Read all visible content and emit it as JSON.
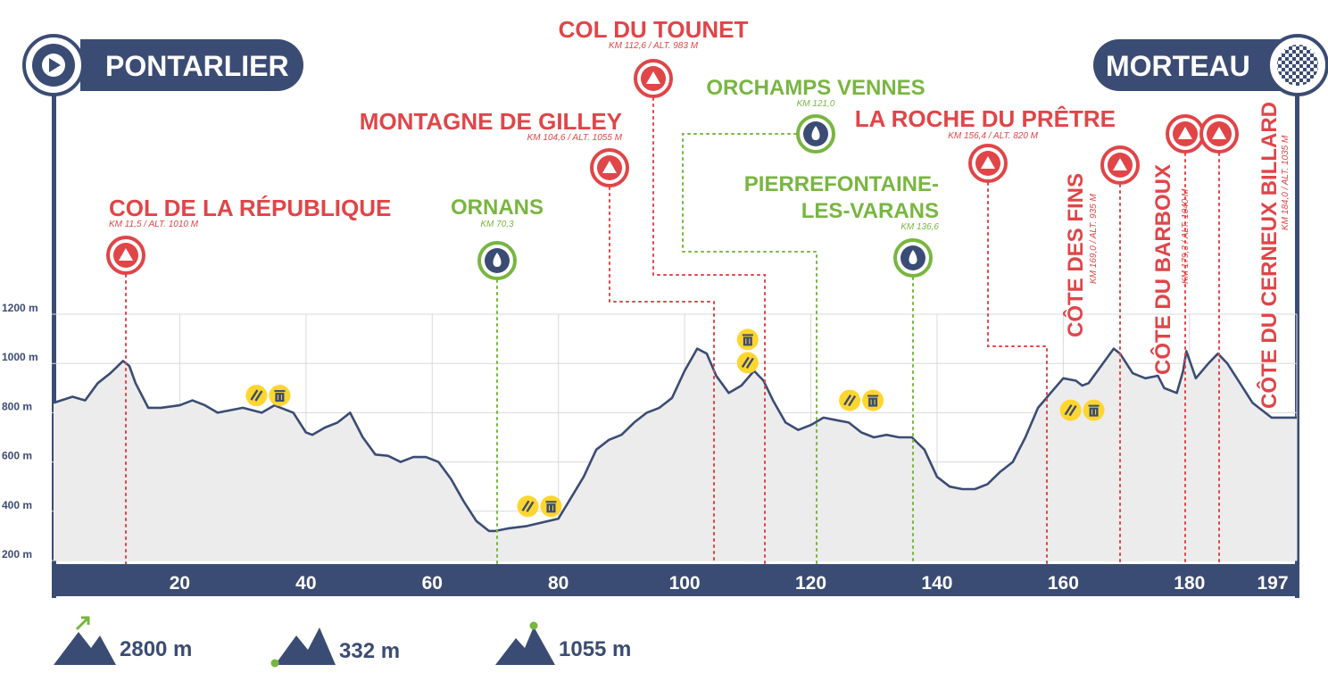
{
  "start": {
    "name": "PONTARLIER",
    "icon": "play-icon"
  },
  "finish": {
    "name": "MORTEAU",
    "icon": "checkered-flag-icon"
  },
  "colors": {
    "navy": "#3b4c74",
    "climb_red": "#e04548",
    "sprint_green": "#78b640",
    "feed_yellow": "#ffd62e",
    "profile_fill": "#ececec",
    "grid": "#d9d9d9"
  },
  "chart_data": {
    "type": "area",
    "xlabel": "",
    "ylabel": "",
    "x_unit": "km",
    "y_unit": "m",
    "xlim": [
      0,
      197
    ],
    "ylim": [
      200,
      1200
    ],
    "x_ticks": [
      "20",
      "40",
      "60",
      "80",
      "100",
      "120",
      "140",
      "160",
      "180",
      "197"
    ],
    "x_tick_values": [
      20,
      40,
      60,
      80,
      100,
      120,
      140,
      160,
      180,
      197
    ],
    "y_ticks": [
      "1200 m",
      "1000 m",
      "800 m",
      "600 m",
      "400 m",
      "200 m"
    ],
    "y_tick_values": [
      1200,
      1000,
      800,
      600,
      400,
      200
    ],
    "profile": {
      "x": [
        0,
        3,
        5,
        7,
        9,
        11,
        12,
        13,
        15,
        17,
        20,
        22,
        24,
        26,
        28,
        30,
        33,
        35,
        36,
        38,
        40,
        41,
        43,
        45,
        47,
        49,
        51,
        53,
        55,
        57,
        59,
        61,
        63,
        65,
        67,
        69,
        70,
        72,
        75,
        80,
        84,
        86,
        88,
        90,
        92,
        94,
        96,
        98,
        100,
        102,
        103.5,
        105,
        107,
        109,
        111,
        112.5,
        114,
        116,
        118,
        120,
        122,
        124,
        126,
        128,
        130,
        132,
        134,
        136,
        138,
        140,
        142,
        144,
        146,
        148,
        150,
        152,
        154,
        156,
        157,
        158,
        160,
        162,
        163,
        164,
        166,
        168,
        169,
        171,
        173,
        175,
        176,
        178,
        179,
        179.5,
        181,
        183,
        184.5,
        186,
        188,
        190,
        193,
        197
      ],
      "y": [
        840,
        865,
        850,
        920,
        960,
        1010,
        990,
        920,
        820,
        820,
        830,
        850,
        830,
        800,
        810,
        820,
        800,
        830,
        820,
        800,
        720,
        710,
        740,
        760,
        800,
        700,
        630,
        625,
        600,
        620,
        620,
        600,
        530,
        440,
        360,
        320,
        320,
        330,
        340,
        370,
        540,
        650,
        690,
        710,
        760,
        800,
        820,
        860,
        970,
        1060,
        1040,
        950,
        880,
        910,
        970,
        930,
        850,
        760,
        730,
        750,
        780,
        770,
        760,
        720,
        700,
        710,
        700,
        700,
        650,
        540,
        500,
        490,
        490,
        510,
        560,
        600,
        700,
        820,
        850,
        880,
        940,
        930,
        910,
        920,
        990,
        1060,
        1040,
        960,
        940,
        950,
        900,
        880,
        970,
        1050,
        940,
        1000,
        1040,
        1000,
        920,
        840,
        780,
        780
      ]
    },
    "climbs": [
      {
        "name": "COL DE LA RÉPUBLIQUE",
        "info": "KM 11,5 / ALT. 1010 M",
        "km": 11.5
      },
      {
        "name": "MONTAGNE DE GILLEY",
        "info": "KM 104,6 / ALT. 1055 M",
        "km": 104.6
      },
      {
        "name": "COL DU TOUNET",
        "info": "KM 112,6 / ALT. 983 M",
        "km": 112.6
      },
      {
        "name": "LA ROCHE DU PRÊTRE",
        "info": "KM 156,4 / ALT. 820 M",
        "km": 156.4
      },
      {
        "name": "CÔTE DES FINS",
        "info": "KM 169,0 / ALT. 935 M",
        "km": 169.0
      },
      {
        "name": "CÔTE DU BARBOUX",
        "info": "KM 179,3 / ALT. 1040 M",
        "km": 179.3
      },
      {
        "name": "CÔTE DU CERNEUX BILLARD",
        "info": "KM 184,0 / ALT. 1035 M",
        "km": 184.0
      }
    ],
    "sprints": [
      {
        "name": "ORNANS",
        "info": "KM 70,3",
        "km": 70.3
      },
      {
        "name": "ORCHAMPS VENNES",
        "info": "KM 121,0",
        "km": 121.0
      },
      {
        "name": "PIERREFONTAINE-LES-VARANS",
        "name_lines": [
          "PIERREFONTAINE-",
          "LES-VARANS"
        ],
        "info": "KM 136,6",
        "km": 136.6
      }
    ],
    "feed_zones": [
      {
        "km": 34,
        "alt": 870,
        "layout": "row",
        "icons": [
          "flask-icon",
          "trash-icon"
        ]
      },
      {
        "km": 77,
        "alt": 420,
        "layout": "row",
        "icons": [
          "flask-icon",
          "trash-icon"
        ]
      },
      {
        "km": 110,
        "alt": 1050,
        "layout": "column",
        "icons": [
          "trash-icon",
          "flask-icon"
        ]
      },
      {
        "km": 128,
        "alt": 850,
        "layout": "row",
        "icons": [
          "flask-icon",
          "trash-icon"
        ]
      },
      {
        "km": 163,
        "alt": 810,
        "layout": "row",
        "icons": [
          "flask-icon",
          "trash-icon"
        ]
      }
    ]
  },
  "stats": [
    {
      "value": "2800 m",
      "icon": "elevation-gain-icon"
    },
    {
      "value": "332 m",
      "icon": "min-altitude-icon"
    },
    {
      "value": "1055 m",
      "icon": "max-altitude-icon"
    }
  ]
}
